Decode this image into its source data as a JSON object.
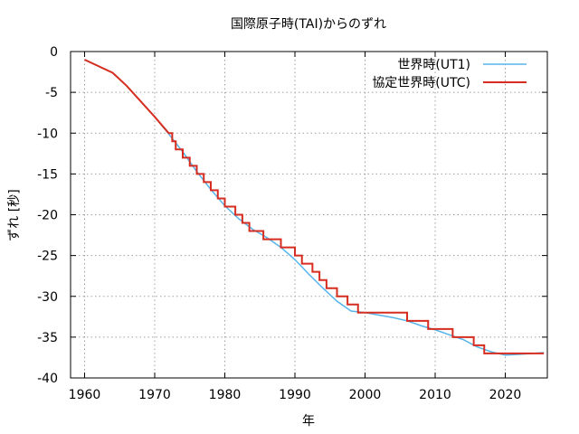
{
  "chart_data": {
    "type": "line",
    "title": "国際原子時(TAI)からのずれ",
    "xlabel": "年",
    "ylabel": "ずれ [秒]",
    "xlim": [
      1958,
      2026
    ],
    "ylim": [
      -40,
      0
    ],
    "x_ticks": [
      1960,
      1970,
      1980,
      1990,
      2000,
      2010,
      2020
    ],
    "y_ticks": [
      0,
      -5,
      -10,
      -15,
      -20,
      -25,
      -30,
      -35,
      -40
    ],
    "grid": true,
    "legend_position": "top-right",
    "series": [
      {
        "name": "世界時(UT1)",
        "color": "#56b4e9",
        "points": [
          [
            1960,
            -1.0
          ],
          [
            1964,
            -2.6
          ],
          [
            1966,
            -4.2
          ],
          [
            1968,
            -6.1
          ],
          [
            1970,
            -8.0
          ],
          [
            1972,
            -10.1
          ],
          [
            1974,
            -12.3
          ],
          [
            1976,
            -14.7
          ],
          [
            1978,
            -16.9
          ],
          [
            1980,
            -18.9
          ],
          [
            1982,
            -20.5
          ],
          [
            1984,
            -21.8
          ],
          [
            1986,
            -22.8
          ],
          [
            1988,
            -24.0
          ],
          [
            1990,
            -25.5
          ],
          [
            1992,
            -27.3
          ],
          [
            1994,
            -29.0
          ],
          [
            1996,
            -30.6
          ],
          [
            1998,
            -31.8
          ],
          [
            2000,
            -32.0
          ],
          [
            2002,
            -32.3
          ],
          [
            2004,
            -32.6
          ],
          [
            2006,
            -33.0
          ],
          [
            2008,
            -33.6
          ],
          [
            2010,
            -34.1
          ],
          [
            2012,
            -34.7
          ],
          [
            2014,
            -35.3
          ],
          [
            2016,
            -36.2
          ],
          [
            2018,
            -36.8
          ],
          [
            2020,
            -37.2
          ],
          [
            2022,
            -37.1
          ],
          [
            2024,
            -37.0
          ],
          [
            2025.5,
            -36.9
          ]
        ]
      },
      {
        "name": "協定世界時(UTC)",
        "color": "#d62d20",
        "step_changes": [
          [
            1972.5,
            -11
          ],
          [
            1973,
            -12
          ],
          [
            1974,
            -13
          ],
          [
            1975,
            -14
          ],
          [
            1976,
            -15
          ],
          [
            1977,
            -16
          ],
          [
            1978,
            -17
          ],
          [
            1979,
            -18
          ],
          [
            1980,
            -19
          ],
          [
            1981.5,
            -20
          ],
          [
            1982.5,
            -21
          ],
          [
            1983.5,
            -22
          ],
          [
            1985.5,
            -23
          ],
          [
            1988,
            -24
          ],
          [
            1990,
            -25
          ],
          [
            1991,
            -26
          ],
          [
            1992.5,
            -27
          ],
          [
            1993.5,
            -28
          ],
          [
            1994.5,
            -29
          ],
          [
            1996,
            -30
          ],
          [
            1997.5,
            -31
          ],
          [
            1999,
            -32
          ],
          [
            2006,
            -33
          ],
          [
            2009,
            -34
          ],
          [
            2012.5,
            -35
          ],
          [
            2015.5,
            -36
          ],
          [
            2017,
            -37
          ]
        ],
        "pre_1972_points": [
          [
            1960,
            -1.0
          ],
          [
            1964,
            -2.6
          ],
          [
            1966,
            -4.2
          ],
          [
            1968,
            -6.1
          ],
          [
            1970,
            -8.0
          ],
          [
            1972,
            -10.0
          ]
        ],
        "end_x": 2025.5
      }
    ]
  }
}
